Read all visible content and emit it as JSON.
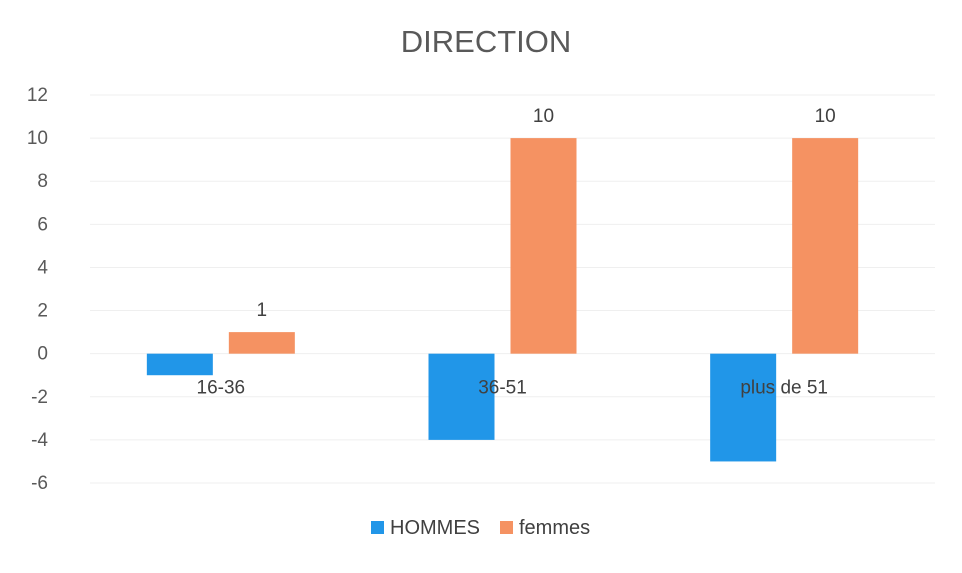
{
  "chart_data": {
    "type": "bar",
    "title": "DIRECTION",
    "categories": [
      "16-36",
      "36-51",
      "plus de 51"
    ],
    "series": [
      {
        "name": "HOMMES",
        "values": [
          -1,
          -4,
          -5
        ],
        "color": "#2196e8",
        "labels": [
          null,
          null,
          null
        ]
      },
      {
        "name": "femmes",
        "values": [
          1,
          10,
          10
        ],
        "color": "#f59262",
        "labels": [
          "1",
          "10",
          "10"
        ]
      }
    ],
    "yticks": [
      12,
      10,
      8,
      6,
      4,
      2,
      0,
      -2,
      -4,
      -6
    ],
    "ylim": [
      -6,
      12
    ],
    "grid": true,
    "legend": "bottom"
  }
}
